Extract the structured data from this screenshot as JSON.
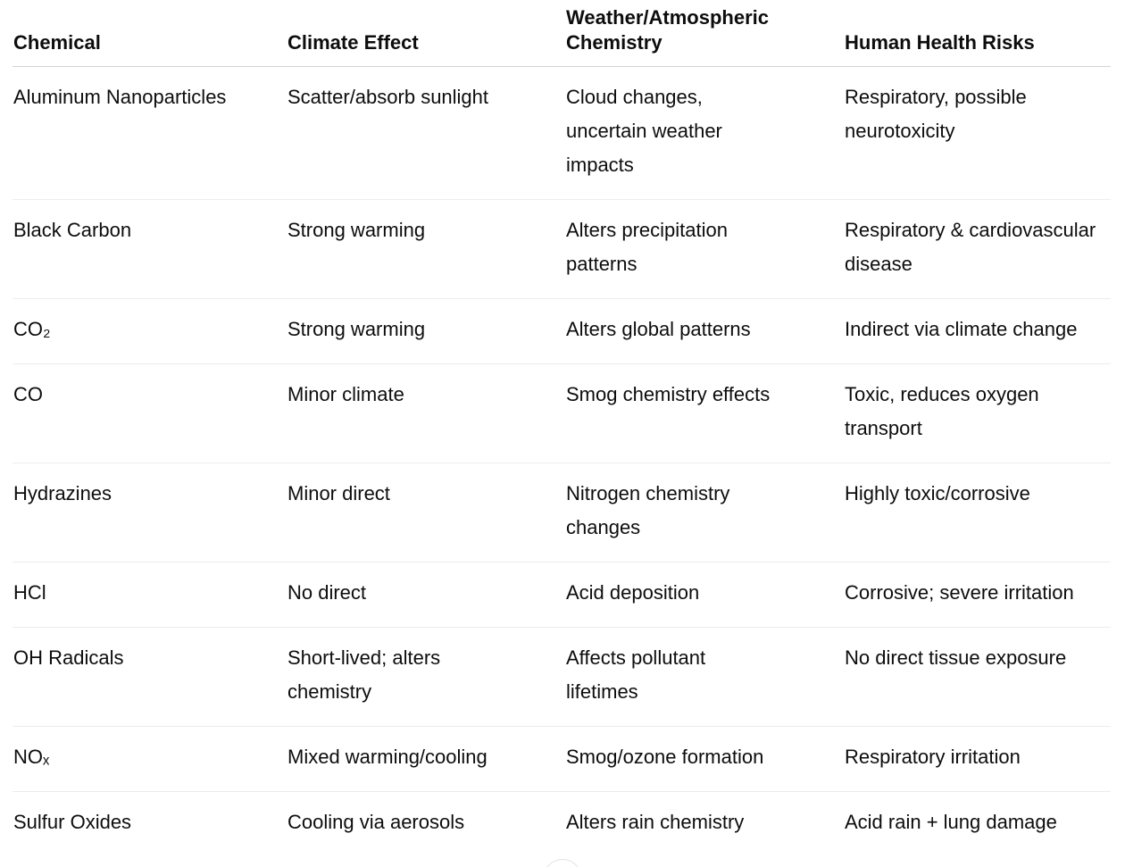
{
  "page": {
    "background_color": "#ffffff",
    "text_color": "#0d0d0d",
    "header_divider_color": "#d3d3d3",
    "row_divider_color": "#ececec"
  },
  "table": {
    "headers": [
      "Chemical",
      "Climate Effect",
      "Weather/Atmospheric Chemistry",
      "Human Health Risks"
    ],
    "rows": [
      [
        "Aluminum Nanoparticles",
        "Scatter/absorb sunlight",
        "Cloud changes, uncertain weather impacts",
        "Respiratory, possible neurotoxicity"
      ],
      [
        "Black Carbon",
        "Strong warming",
        "Alters precipitation patterns",
        "Respiratory & cardiovascular disease"
      ],
      [
        "CO₂",
        "Strong warming",
        "Alters global patterns",
        "Indirect via climate change"
      ],
      [
        "CO",
        "Minor climate",
        "Smog chemistry effects",
        "Toxic, reduces oxygen transport"
      ],
      [
        "Hydrazines",
        "Minor direct",
        "Nitrogen chemistry changes",
        "Highly toxic/corrosive"
      ],
      [
        "HCl",
        "No direct",
        "Acid deposition",
        "Corrosive; severe irritation"
      ],
      [
        "OH Radicals",
        "Short-lived; alters chemistry",
        "Affects pollutant lifetimes",
        "No direct tissue exposure"
      ],
      [
        "NOₓ",
        "Mixed warming/cooling",
        "Smog/ozone formation",
        "Respiratory irritation"
      ],
      [
        "Sulfur Oxides",
        "Cooling via aerosols",
        "Alters rain chemistry",
        "Acid rain + lung damage"
      ]
    ]
  },
  "scroll_button": {
    "border_color": "#e2e2e2",
    "chevron": "⌄"
  }
}
